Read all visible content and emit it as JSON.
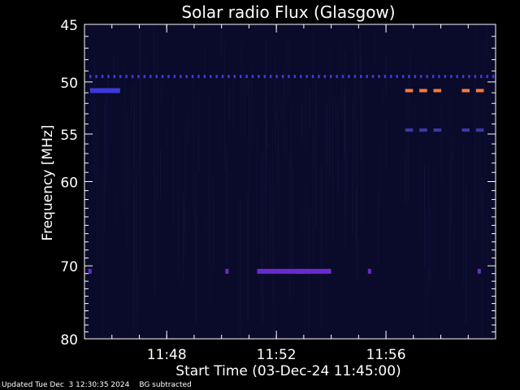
{
  "chart_data": {
    "type": "heatmap",
    "title": "Solar radio Flux (Glasgow)",
    "xlabel": "Start Time (03-Dec-24 11:45:00)",
    "ylabel": "Frequency [MHz]",
    "x_range_minutes": [
      "11:45",
      "12:00"
    ],
    "x_ticks": [
      "11:48",
      "11:52",
      "11:56"
    ],
    "y_ticks": [
      45,
      50,
      55,
      60,
      70,
      80
    ],
    "ylim": [
      45,
      80
    ],
    "y_scale": "log",
    "background_color": "#0a0a2a",
    "features": [
      {
        "kind": "row-dots",
        "freq": 49.5,
        "color": "#3a3adc",
        "from": "11:45",
        "to": "12:00"
      },
      {
        "kind": "segment",
        "freq": 50.8,
        "color": "#3a3adc",
        "from": "11:45.2",
        "to": "11:46.3"
      },
      {
        "kind": "dashes",
        "freq": 50.8,
        "color": "#ff7a3a",
        "from": "11:56.7",
        "to": "11:59.8"
      },
      {
        "kind": "dashes",
        "freq": 54.6,
        "color": "#3a3aaa",
        "from": "11:56.7",
        "to": "11:59.8"
      },
      {
        "kind": "segment",
        "freq": 70.7,
        "color": "#6a2ad0",
        "from": "11:51.3",
        "to": "11:53.2"
      },
      {
        "kind": "segment",
        "freq": 70.7,
        "color": "#6a2ad0",
        "from": "11:52.7",
        "to": "11:54.0"
      },
      {
        "kind": "dot",
        "freq": 70.7,
        "color": "#6a2ad0",
        "at": "11:45.2"
      },
      {
        "kind": "dot",
        "freq": 70.7,
        "color": "#6a2ad0",
        "at": "11:50.2"
      },
      {
        "kind": "dot",
        "freq": 70.7,
        "color": "#6a2ad0",
        "at": "11:55.4"
      },
      {
        "kind": "dot",
        "freq": 70.7,
        "color": "#6a2ad0",
        "at": "11:59.4"
      }
    ]
  },
  "footer": {
    "updated": "Updated Tue Dec  3 12:30:35 2024",
    "note": "BG subtracted"
  }
}
